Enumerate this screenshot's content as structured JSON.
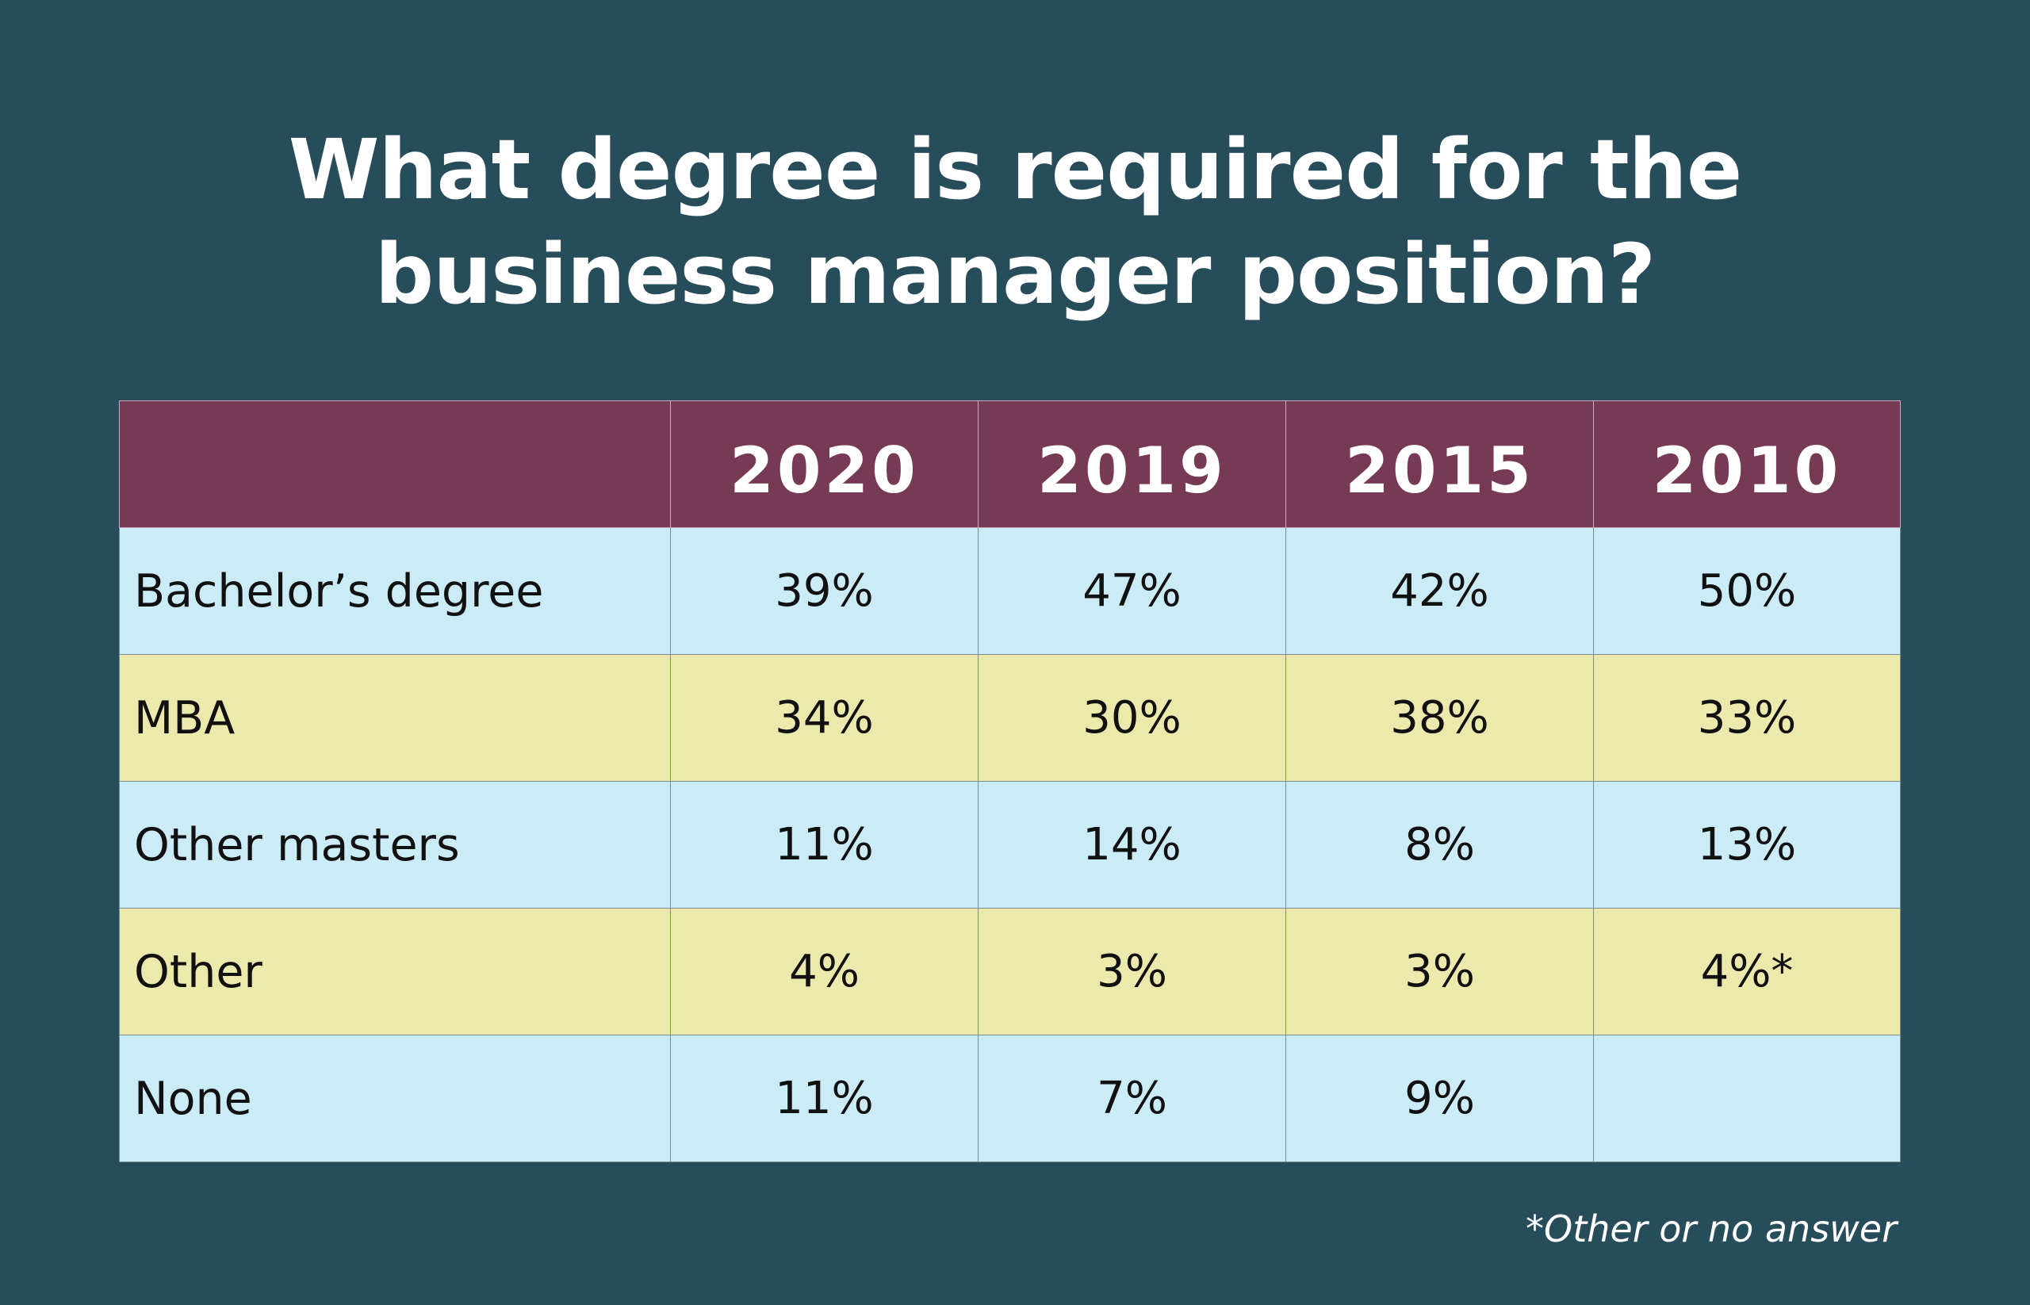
{
  "chart_data": {
    "type": "table",
    "title": [
      "What degree is required for the",
      "business manager position?"
    ],
    "columns": [
      "2020",
      "2019",
      "2015",
      "2010"
    ],
    "rows": [
      {
        "label": "Bachelor’s degree",
        "values": [
          "39%",
          "47%",
          "42%",
          "50%"
        ]
      },
      {
        "label": "MBA",
        "values": [
          "34%",
          "30%",
          "38%",
          "33%"
        ]
      },
      {
        "label": "Other masters",
        "values": [
          "11%",
          "14%",
          "8%",
          "13%"
        ]
      },
      {
        "label": "Other",
        "values": [
          "4%",
          "3%",
          "3%",
          "4%*"
        ]
      },
      {
        "label": "None",
        "values": [
          "11%",
          "7%",
          "9%",
          ""
        ]
      }
    ],
    "footnote": "*Other or no answer"
  },
  "colors": {
    "background": "#274c5a",
    "header": "#773a55",
    "row_blue": "#cbebf7",
    "row_yellow": "#ece9ad"
  }
}
